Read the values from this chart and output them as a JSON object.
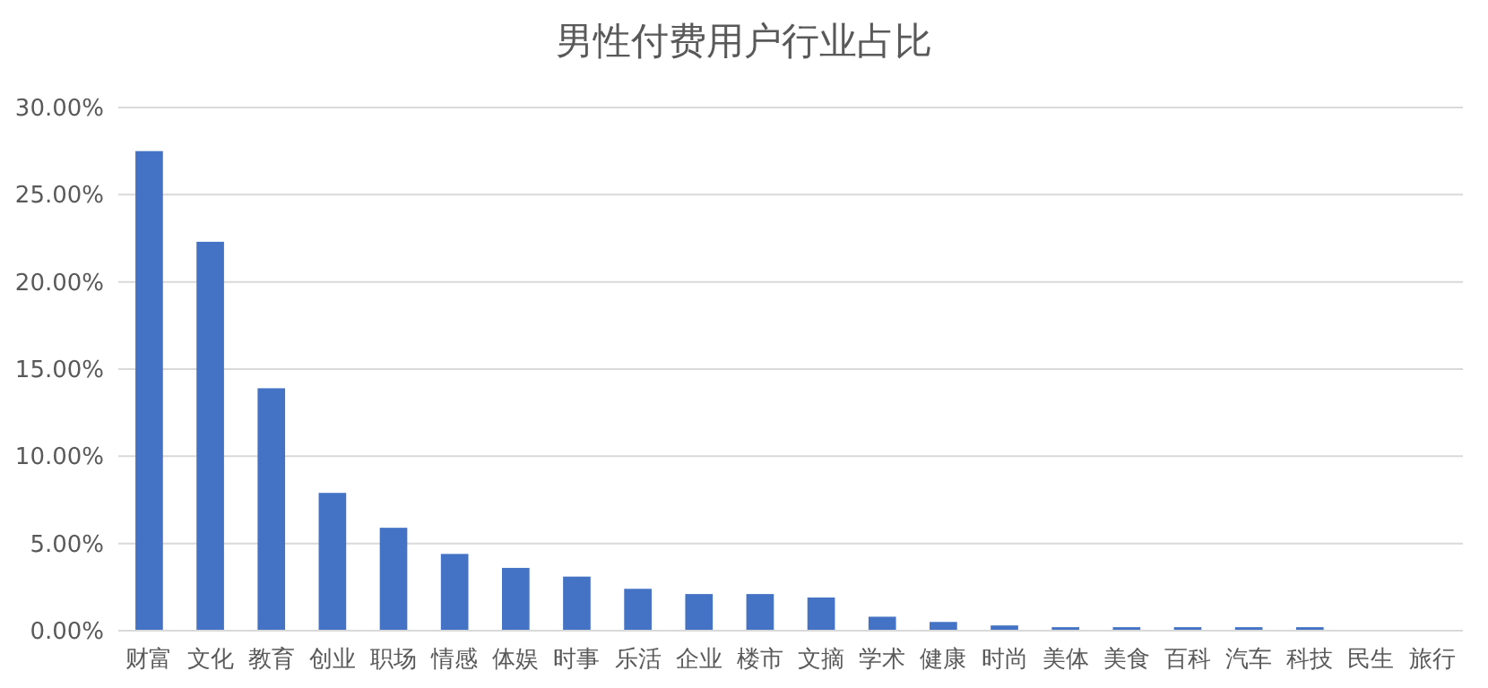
{
  "chart_data": {
    "type": "bar",
    "title": "男性付费用户行业占比",
    "categories": [
      "财富",
      "文化",
      "教育",
      "创业",
      "职场",
      "情感",
      "体娱",
      "时事",
      "乐活",
      "企业",
      "楼市",
      "文摘",
      "学术",
      "健康",
      "时尚",
      "美体",
      "美食",
      "百科",
      "汽车",
      "科技",
      "民生",
      "旅行"
    ],
    "values": [
      27.5,
      22.3,
      13.9,
      7.9,
      5.9,
      4.4,
      3.6,
      3.1,
      2.4,
      2.1,
      2.1,
      1.9,
      0.8,
      0.5,
      0.3,
      0.2,
      0.2,
      0.2,
      0.2,
      0.2,
      0,
      0
    ],
    "color": "#4472c4",
    "ylim": [
      0,
      30
    ],
    "yticks": [
      {
        "value": 0,
        "label": "0.00%"
      },
      {
        "value": 5,
        "label": "5.00%"
      },
      {
        "value": 10,
        "label": "10.00%"
      },
      {
        "value": 15,
        "label": "15.00%"
      },
      {
        "value": 20,
        "label": "20.00%"
      },
      {
        "value": 25,
        "label": "25.00%"
      },
      {
        "value": 30,
        "label": "30.00%"
      }
    ],
    "grid": "y"
  }
}
